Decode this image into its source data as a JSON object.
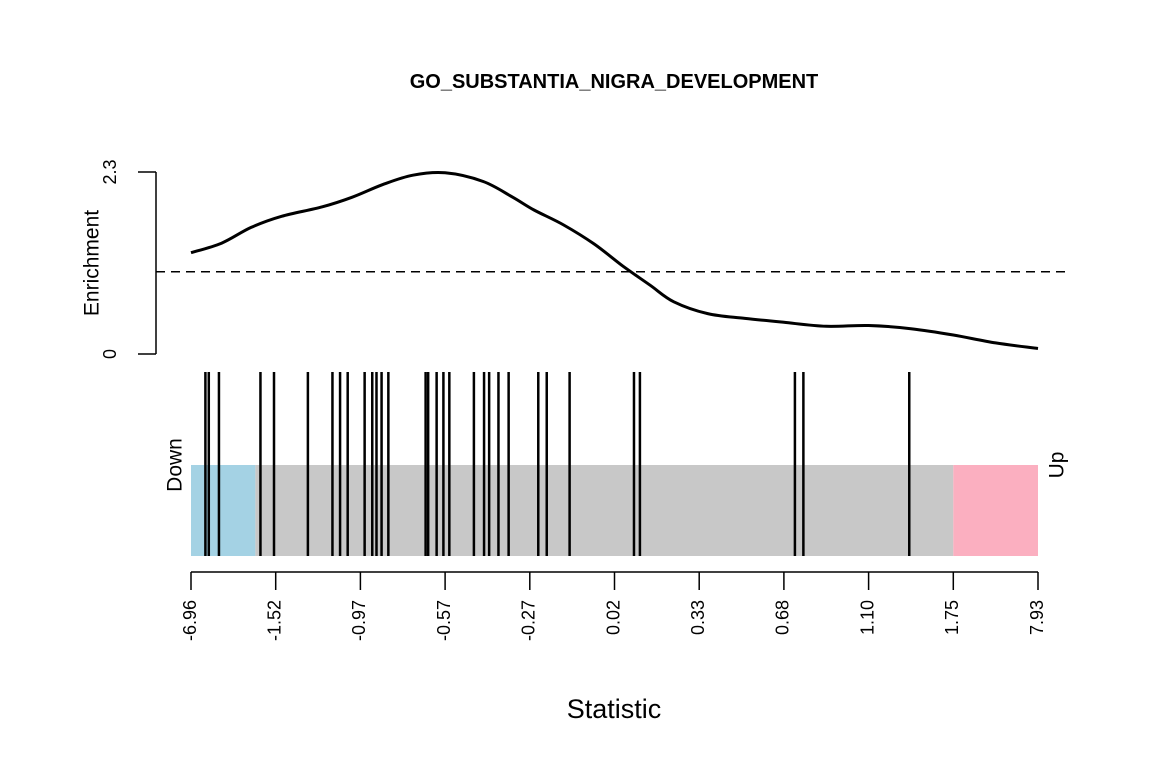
{
  "chart_data": {
    "type": "barcode",
    "title": "GO_SUBSTANTIA_NIGRA_DEVELOPMENT",
    "xlabel": "Statistic",
    "enrichment": {
      "ylabel": "Enrichment",
      "y_ticks": [
        "0",
        "2.3"
      ],
      "ylim": [
        0,
        2.3
      ],
      "baseline": 1.04,
      "curve_x": [
        0.0,
        0.036,
        0.071,
        0.107,
        0.155,
        0.19,
        0.226,
        0.262,
        0.3,
        0.345,
        0.38,
        0.405,
        0.44,
        0.476,
        0.51,
        0.542,
        0.57,
        0.61,
        0.654,
        0.7,
        0.75,
        0.8,
        0.85,
        0.9,
        0.95,
        1.0
      ],
      "curve_y": [
        1.28,
        1.4,
        1.6,
        1.74,
        1.86,
        1.98,
        2.14,
        2.26,
        2.29,
        2.18,
        1.98,
        1.82,
        1.63,
        1.39,
        1.11,
        0.87,
        0.66,
        0.51,
        0.45,
        0.4,
        0.35,
        0.36,
        0.32,
        0.24,
        0.14,
        0.07
      ]
    },
    "barcode": {
      "down_label": "Down",
      "up_label": "Up",
      "down_color": "#A4D2E4",
      "middle_color": "#C8C8C8",
      "up_color": "#FBAFC0",
      "down_end": 0.076,
      "up_start": 0.9,
      "x_ticks": [
        "-6.96",
        "-1.52",
        "-0.97",
        "-0.57",
        "-0.27",
        "0.02",
        "0.33",
        "0.68",
        "1.10",
        "1.75",
        "7.93"
      ],
      "bar_positions": [
        0.017,
        0.021,
        0.033,
        0.082,
        0.098,
        0.138,
        0.167,
        0.176,
        0.185,
        0.205,
        0.214,
        0.219,
        0.225,
        0.233,
        0.277,
        0.28,
        0.29,
        0.298,
        0.305,
        0.334,
        0.346,
        0.352,
        0.363,
        0.375,
        0.41,
        0.42,
        0.447,
        0.523,
        0.53,
        0.713,
        0.723,
        0.848
      ]
    }
  }
}
